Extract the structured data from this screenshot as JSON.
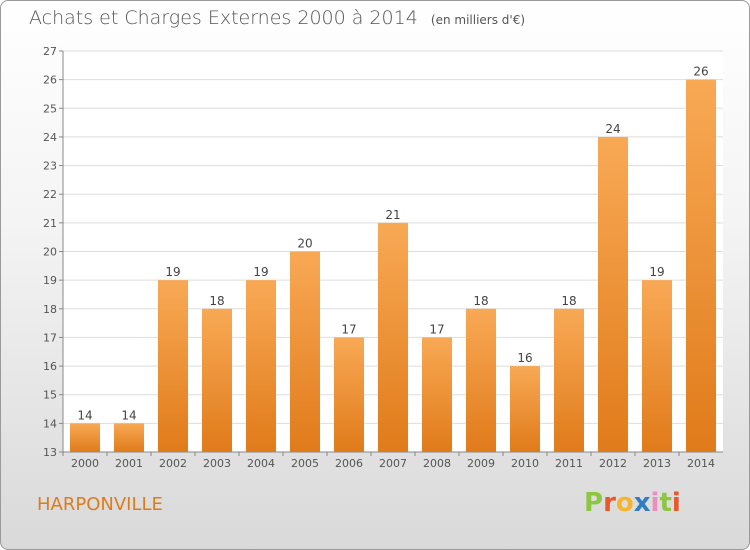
{
  "title": "Achats et Charges Externes 2000 à 2014",
  "subtitle": "(en milliers d'€)",
  "place": "HARPONVILLE",
  "logo": {
    "letters": [
      "P",
      "r",
      "o",
      "x",
      "i",
      "t",
      "i"
    ],
    "colors": [
      "#8dc63f",
      "#e8582b",
      "#f7b52b",
      "#2e7ec1",
      "#f08cbd",
      "#8dc63f",
      "#e8582b"
    ]
  },
  "colors": {
    "bar_light": "#f8a955",
    "bar_dark": "#e07b1a",
    "grid": "#dddddd",
    "axis": "#888888"
  },
  "chart_data": {
    "type": "bar",
    "title": "Achats et Charges Externes 2000 à 2014",
    "subtitle": "(en milliers d'€)",
    "categories": [
      "2000",
      "2001",
      "2002",
      "2003",
      "2004",
      "2005",
      "2006",
      "2007",
      "2008",
      "2009",
      "2010",
      "2011",
      "2012",
      "2013",
      "2014"
    ],
    "values": [
      14,
      14,
      19,
      18,
      19,
      20,
      17,
      21,
      17,
      18,
      16,
      18,
      24,
      19,
      26
    ],
    "ylim": [
      13,
      27
    ],
    "yticks": [
      13,
      14,
      15,
      16,
      17,
      18,
      19,
      20,
      21,
      22,
      23,
      24,
      25,
      26,
      27
    ],
    "grid": true,
    "data_labels": true
  }
}
